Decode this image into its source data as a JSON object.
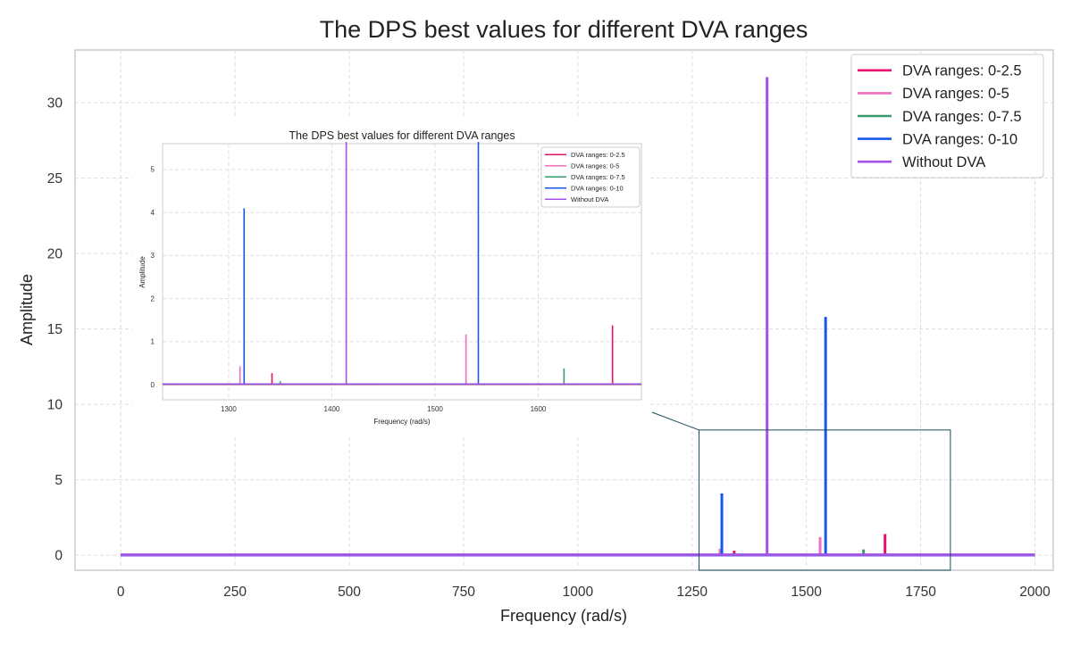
{
  "chart_data": [
    {
      "type": "line",
      "title": "The DPS best values for different DVA ranges",
      "xlabel": "Frequency (rad/s)",
      "ylabel": "Amplitude",
      "xlim": [
        -100,
        2040
      ],
      "ylim": [
        -1,
        33.5
      ],
      "xticks": [
        0,
        250,
        500,
        750,
        1000,
        1250,
        1500,
        1750,
        2000
      ],
      "yticks": [
        0,
        5,
        10,
        15,
        20,
        25,
        30
      ],
      "grid": true,
      "legend": "top-right",
      "series": [
        {
          "name": "DVA ranges: 0-2.5",
          "color": "#e8106a",
          "peaks": [
            [
              1342,
              0.3
            ],
            [
              1672,
              1.4
            ]
          ]
        },
        {
          "name": "DVA ranges: 0-5",
          "color": "#ee6fc1",
          "peaks": [
            [
              1311,
              0.42
            ],
            [
              1530,
              1.2
            ]
          ]
        },
        {
          "name": "DVA ranges: 0-7.5",
          "color": "#3a9a6a",
          "peaks": [
            [
              1350,
              0.1
            ],
            [
              1625,
              0.38
            ]
          ]
        },
        {
          "name": "DVA ranges: 0-10",
          "color": "#1558e8",
          "peaks": [
            [
              1315,
              4.1
            ],
            [
              1542,
              15.8
            ]
          ]
        },
        {
          "name": "Without DVA",
          "color": "#a550e8",
          "peaks": [
            [
              1414,
              31.7
            ]
          ]
        }
      ],
      "x_range": [
        0,
        2000
      ]
    },
    {
      "type": "line",
      "title": "The DPS best values for different DVA ranges",
      "xlabel": "Frequency (rad/s)",
      "ylabel": "Amplitude",
      "xlim": [
        1236,
        1700
      ],
      "ylim": [
        -0.35,
        5.6
      ],
      "xticks": [
        1300,
        1400,
        1500,
        1600
      ],
      "yticks": [
        0,
        1,
        2,
        3,
        4,
        5
      ],
      "grid": true,
      "legend": "top-right",
      "series": [
        {
          "name": "DVA ranges: 0-2.5",
          "color": "#e8106a",
          "peaks": [
            [
              1342,
              0.27
            ],
            [
              1672,
              1.38
            ]
          ]
        },
        {
          "name": "DVA ranges: 0-5",
          "color": "#ee6fc1",
          "peaks": [
            [
              1311,
              0.43
            ],
            [
              1530,
              1.17
            ]
          ]
        },
        {
          "name": "DVA ranges: 0-7.5",
          "color": "#3a9a6a",
          "peaks": [
            [
              1350,
              0.08
            ],
            [
              1625,
              0.38
            ]
          ]
        },
        {
          "name": "DVA ranges: 0-10",
          "color": "#1558e8",
          "peaks": [
            [
              1315,
              4.1
            ],
            [
              1542,
              15.8
            ]
          ]
        },
        {
          "name": "Without DVA",
          "color": "#a550e8",
          "peaks": [
            [
              1414,
              31.7
            ]
          ]
        }
      ],
      "x_range": [
        1236,
        1700
      ]
    }
  ],
  "zoom_region": {
    "x": [
      1265,
      1815
    ],
    "y": [
      -1,
      8.3
    ]
  }
}
